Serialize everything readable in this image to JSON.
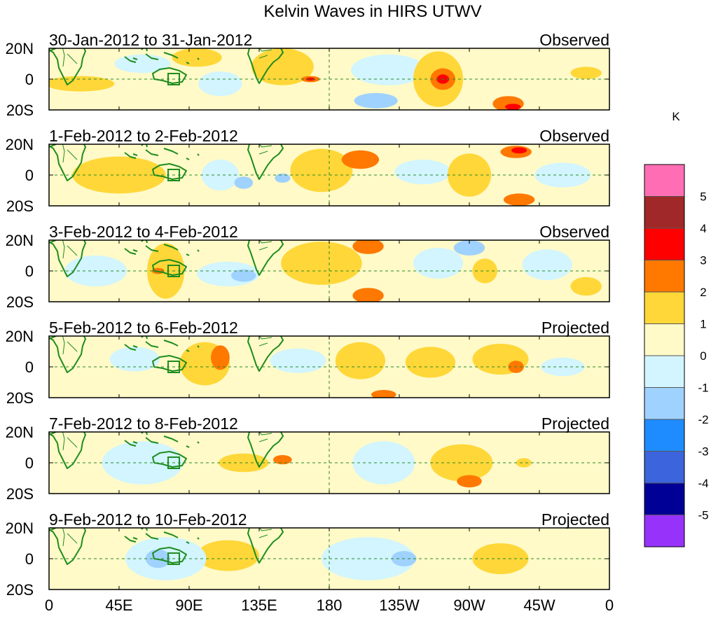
{
  "title": "Kelvin Waves in HIRS UTWV",
  "colorbar": {
    "unit": "K",
    "labels": [
      "5",
      "4",
      "3",
      "2",
      "1",
      "0",
      "-1",
      "-2",
      "-3",
      "-4",
      "-5"
    ],
    "colors": [
      "#ff6eb4",
      "#a02828",
      "#ff0000",
      "#ff7800",
      "#ffd738",
      "#fffac8",
      "#d2f5ff",
      "#a0d2ff",
      "#1e8cff",
      "#3c64dc",
      "#000096",
      "#9632fa"
    ]
  },
  "colors": {
    "coast": "#1e8c1e",
    "grid": "#2a8a2a"
  },
  "panels": [
    {
      "date": "30-Jan-2012 to 31-Jan-2012",
      "status": "Observed"
    },
    {
      "date": "1-Feb-2012 to 2-Feb-2012",
      "status": "Observed"
    },
    {
      "date": "3-Feb-2012 to 4-Feb-2012",
      "status": "Observed"
    },
    {
      "date": "5-Feb-2012 to 6-Feb-2012",
      "status": "Projected"
    },
    {
      "date": "7-Feb-2012 to 8-Feb-2012",
      "status": "Projected"
    },
    {
      "date": "9-Feb-2012 to 10-Feb-2012",
      "status": "Projected"
    }
  ],
  "lat_labels": [
    "20N",
    "0",
    "20S"
  ],
  "lon_labels": [
    "0",
    "45E",
    "90E",
    "135E",
    "180",
    "135W",
    "90W",
    "45W",
    "0"
  ],
  "anomaly_fields": [
    [
      {
        "lon": 20,
        "lat": -3,
        "rx": 22,
        "ry": 5,
        "v": 1
      },
      {
        "lon": 95,
        "lat": 14,
        "rx": 16,
        "ry": 6,
        "v": 1
      },
      {
        "lon": 110,
        "lat": -3,
        "rx": 14,
        "ry": 8,
        "v": -1
      },
      {
        "lon": 150,
        "lat": 8,
        "rx": 20,
        "ry": 12,
        "v": 1
      },
      {
        "lon": 168,
        "lat": 0,
        "rx": 6,
        "ry": 2,
        "v": 2
      },
      {
        "lon": 168,
        "lat": 0,
        "rx": 3,
        "ry": 1,
        "v": 3
      },
      {
        "lon": 218,
        "lat": 6,
        "rx": 24,
        "ry": 10,
        "v": -1
      },
      {
        "lon": 210,
        "lat": -14,
        "rx": 14,
        "ry": 5,
        "v": -2
      },
      {
        "lon": 250,
        "lat": 0,
        "rx": 16,
        "ry": 18,
        "v": 1
      },
      {
        "lon": 253,
        "lat": 0,
        "rx": 8,
        "ry": 7,
        "v": 2
      },
      {
        "lon": 253,
        "lat": 0,
        "rx": 4,
        "ry": 3,
        "v": 3
      },
      {
        "lon": 295,
        "lat": -16,
        "rx": 10,
        "ry": 5,
        "v": 2
      },
      {
        "lon": 298,
        "lat": -18,
        "rx": 5,
        "ry": 2,
        "v": 3
      },
      {
        "lon": 345,
        "lat": 4,
        "rx": 10,
        "ry": 4,
        "v": 1
      },
      {
        "lon": 60,
        "lat": 10,
        "rx": 18,
        "ry": 6,
        "v": -1
      }
    ],
    [
      {
        "lon": 45,
        "lat": 0,
        "rx": 30,
        "ry": 12,
        "v": 1
      },
      {
        "lon": 110,
        "lat": 0,
        "rx": 12,
        "ry": 10,
        "v": -1
      },
      {
        "lon": 125,
        "lat": -5,
        "rx": 6,
        "ry": 4,
        "v": -2
      },
      {
        "lon": 175,
        "lat": 3,
        "rx": 20,
        "ry": 14,
        "v": 1
      },
      {
        "lon": 200,
        "lat": 10,
        "rx": 12,
        "ry": 6,
        "v": 2
      },
      {
        "lon": 240,
        "lat": 2,
        "rx": 18,
        "ry": 8,
        "v": -1
      },
      {
        "lon": 270,
        "lat": 0,
        "rx": 14,
        "ry": 14,
        "v": 1
      },
      {
        "lon": 300,
        "lat": 15,
        "rx": 10,
        "ry": 4,
        "v": 2
      },
      {
        "lon": 302,
        "lat": 16,
        "rx": 5,
        "ry": 2,
        "v": 3
      },
      {
        "lon": 302,
        "lat": -16,
        "rx": 10,
        "ry": 4,
        "v": 2
      },
      {
        "lon": 330,
        "lat": 0,
        "rx": 18,
        "ry": 8,
        "v": -1
      },
      {
        "lon": 150,
        "lat": -2,
        "rx": 5,
        "ry": 3,
        "v": -2
      }
    ],
    [
      {
        "lon": 75,
        "lat": 0,
        "rx": 12,
        "ry": 18,
        "v": 1
      },
      {
        "lon": 70,
        "lat": 0,
        "rx": 4,
        "ry": 2,
        "v": 2
      },
      {
        "lon": 30,
        "lat": 0,
        "rx": 20,
        "ry": 10,
        "v": -1
      },
      {
        "lon": 115,
        "lat": -2,
        "rx": 20,
        "ry": 8,
        "v": -1
      },
      {
        "lon": 125,
        "lat": -3,
        "rx": 8,
        "ry": 4,
        "v": -2
      },
      {
        "lon": 175,
        "lat": 5,
        "rx": 26,
        "ry": 14,
        "v": 1
      },
      {
        "lon": 205,
        "lat": 16,
        "rx": 10,
        "ry": 5,
        "v": 2
      },
      {
        "lon": 205,
        "lat": -16,
        "rx": 10,
        "ry": 5,
        "v": 2
      },
      {
        "lon": 250,
        "lat": 5,
        "rx": 16,
        "ry": 10,
        "v": -1
      },
      {
        "lon": 270,
        "lat": 15,
        "rx": 10,
        "ry": 5,
        "v": -2
      },
      {
        "lon": 280,
        "lat": 0,
        "rx": 8,
        "ry": 8,
        "v": 1
      },
      {
        "lon": 320,
        "lat": 4,
        "rx": 16,
        "ry": 10,
        "v": -1
      },
      {
        "lon": 345,
        "lat": -10,
        "rx": 10,
        "ry": 6,
        "v": 1
      }
    ],
    [
      {
        "lon": 100,
        "lat": 2,
        "rx": 16,
        "ry": 14,
        "v": 1
      },
      {
        "lon": 110,
        "lat": 6,
        "rx": 6,
        "ry": 8,
        "v": 2
      },
      {
        "lon": 55,
        "lat": 5,
        "rx": 16,
        "ry": 8,
        "v": -1
      },
      {
        "lon": 160,
        "lat": 4,
        "rx": 18,
        "ry": 8,
        "v": -1
      },
      {
        "lon": 200,
        "lat": 4,
        "rx": 16,
        "ry": 12,
        "v": 1
      },
      {
        "lon": 245,
        "lat": 3,
        "rx": 16,
        "ry": 10,
        "v": 1
      },
      {
        "lon": 290,
        "lat": 5,
        "rx": 18,
        "ry": 10,
        "v": 1
      },
      {
        "lon": 300,
        "lat": 0,
        "rx": 5,
        "ry": 4,
        "v": 2
      },
      {
        "lon": 215,
        "lat": -18,
        "rx": 8,
        "ry": 3,
        "v": 2
      },
      {
        "lon": 330,
        "lat": 0,
        "rx": 14,
        "ry": 6,
        "v": -1
      }
    ],
    [
      {
        "lon": 125,
        "lat": 0,
        "rx": 16,
        "ry": 6,
        "v": 1
      },
      {
        "lon": 150,
        "lat": 2,
        "rx": 6,
        "ry": 3,
        "v": 2
      },
      {
        "lon": 60,
        "lat": 0,
        "rx": 26,
        "ry": 14,
        "v": -1
      },
      {
        "lon": 215,
        "lat": 0,
        "rx": 20,
        "ry": 14,
        "v": -1
      },
      {
        "lon": 265,
        "lat": 0,
        "rx": 20,
        "ry": 12,
        "v": 1
      },
      {
        "lon": 270,
        "lat": -12,
        "rx": 8,
        "ry": 4,
        "v": 2
      },
      {
        "lon": 305,
        "lat": 0,
        "rx": 5,
        "ry": 3,
        "v": 1
      }
    ],
    [
      {
        "lon": 115,
        "lat": 2,
        "rx": 20,
        "ry": 10,
        "v": 1
      },
      {
        "lon": 75,
        "lat": 0,
        "rx": 26,
        "ry": 14,
        "v": -1
      },
      {
        "lon": 70,
        "lat": 0,
        "rx": 8,
        "ry": 6,
        "v": -2
      },
      {
        "lon": 205,
        "lat": 0,
        "rx": 30,
        "ry": 14,
        "v": -1
      },
      {
        "lon": 228,
        "lat": 0,
        "rx": 8,
        "ry": 5,
        "v": -2
      },
      {
        "lon": 290,
        "lat": 0,
        "rx": 18,
        "ry": 10,
        "v": 1
      }
    ]
  ]
}
